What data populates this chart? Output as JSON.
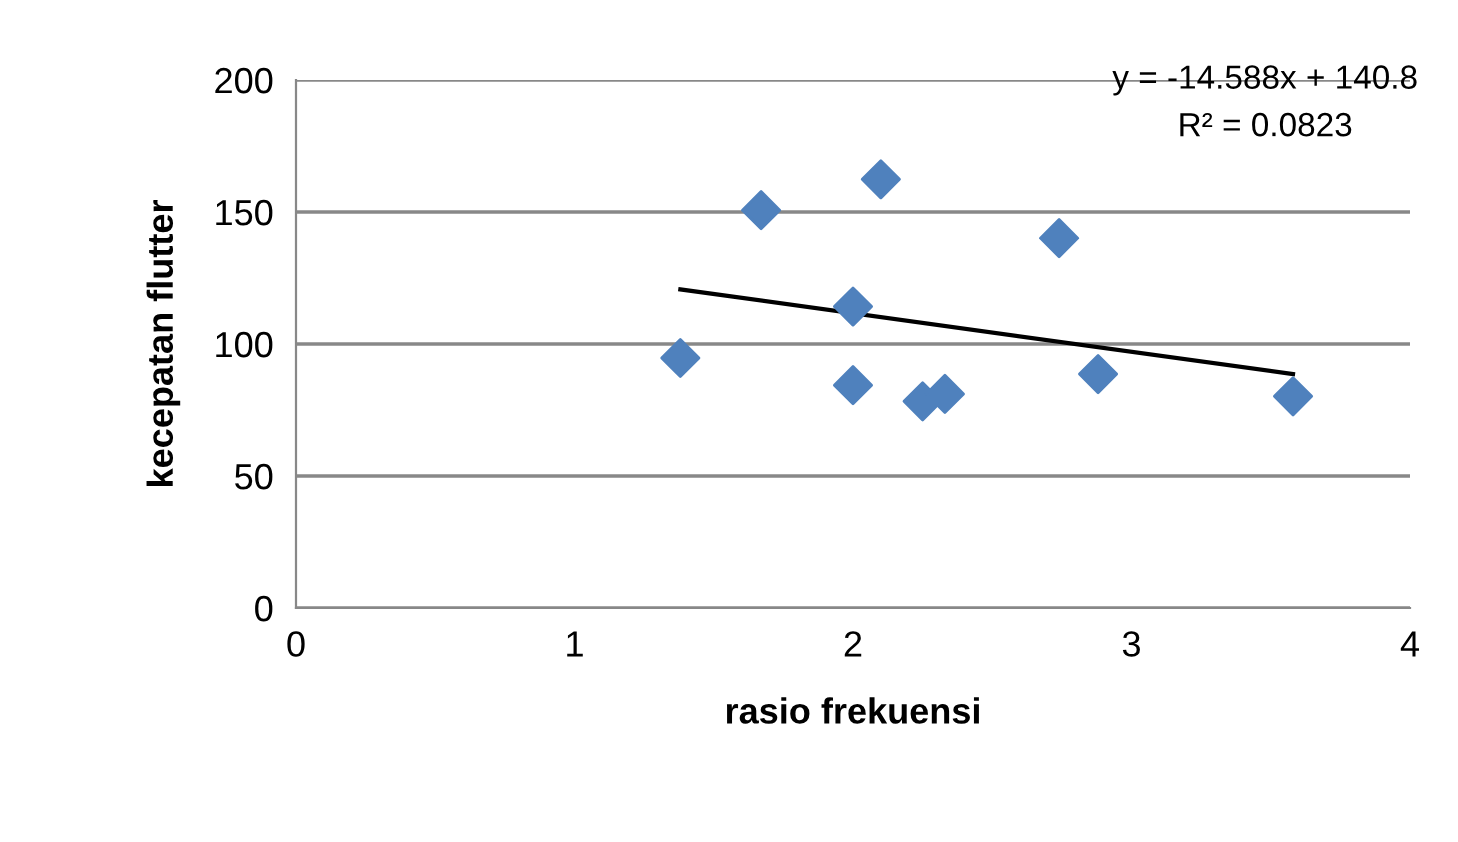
{
  "chart_data": {
    "type": "scatter",
    "xlabel": "rasio frekuensi",
    "ylabel": "kecepatan flutter",
    "xlim": [
      0,
      4
    ],
    "xticks": [
      0,
      1,
      2,
      3,
      4
    ],
    "ylim": [
      0,
      200
    ],
    "yticks": [
      0,
      50,
      100,
      150,
      200
    ],
    "grid": "y",
    "legend": false,
    "annotations": [
      "y = -14.588x + 140.8",
      "R² = 0.0823"
    ],
    "series": [
      {
        "color": "#4f81bd",
        "marker": "diamond",
        "x": [
          1.38,
          1.67,
          2.1,
          2.0,
          2.74,
          2.0,
          2.25,
          2.33,
          2.88,
          3.58
        ],
        "values": [
          94.7,
          150.7,
          162.4,
          114.2,
          140.1,
          84.4,
          78.3,
          81.1,
          88.6,
          80.2
        ]
      },
      {
        "type": "line",
        "color": "#000000",
        "marker": "none",
        "line_style": "solid",
        "x": [
          1.38,
          3.58
        ],
        "values": [
          120.7,
          88.6
        ]
      }
    ]
  }
}
